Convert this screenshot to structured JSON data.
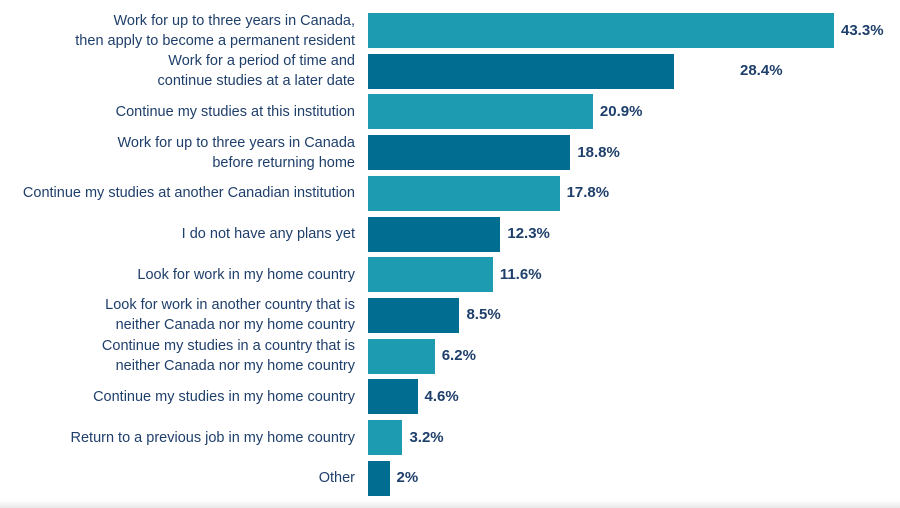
{
  "chart_data": {
    "type": "bar",
    "orientation": "horizontal",
    "categories": [
      "Work for up to three years in Canada,\nthen apply to become a permanent resident",
      "Work for a period of time and\ncontinue studies at a later date",
      "Continue my studies at this institution",
      "Work for up to three years in Canada\nbefore returning home",
      "Continue my studies at another Canadian institution",
      "I do not have any plans yet",
      "Look for work in my home country",
      "Look for work in another country that is\nneither Canada nor my home country",
      "Continue my studies in a country that is\nneither Canada nor my home country",
      "Continue my studies in my home country",
      "Return to a previous job in my home country",
      "Other"
    ],
    "values": [
      43.3,
      28.4,
      20.9,
      18.8,
      17.8,
      12.3,
      11.6,
      8.5,
      6.2,
      4.6,
      3.2,
      2
    ],
    "value_labels": [
      "43.3%",
      "28.4%",
      "20.9%",
      "18.8%",
      "17.8%",
      "12.3%",
      "11.6%",
      "8.5%",
      "6.2%",
      "4.6%",
      "3.2%",
      "2%"
    ],
    "xlim": [
      0,
      43.3
    ],
    "grid": false,
    "colors": {
      "light": "#1d9bb0",
      "dark": "#006d91",
      "text": "#1f3f6b"
    }
  }
}
